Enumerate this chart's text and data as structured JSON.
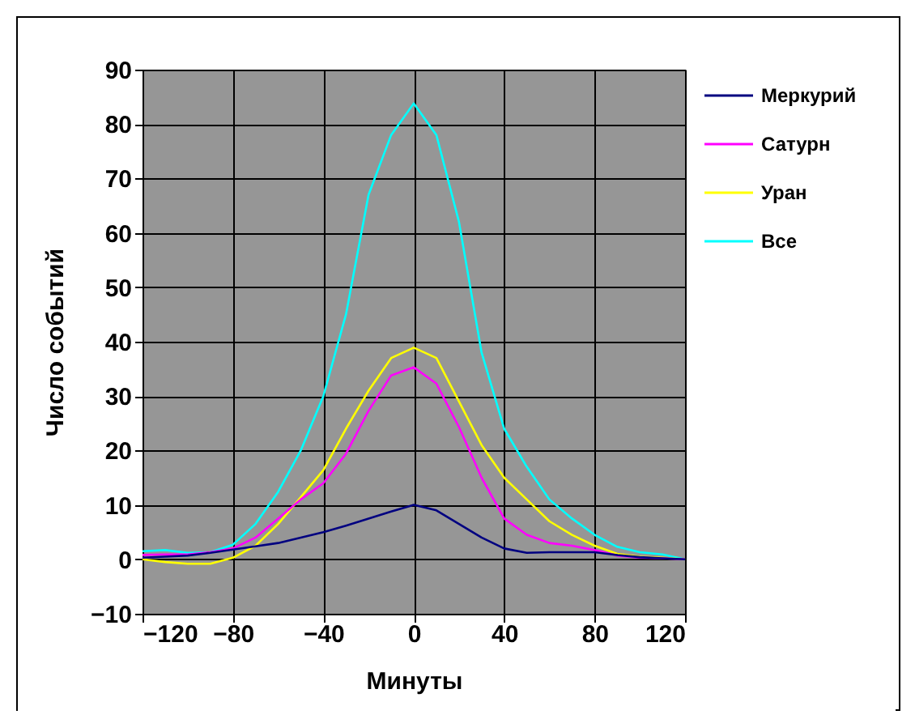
{
  "chart_data": {
    "type": "line",
    "xlabel": "Минуты",
    "ylabel": "Число событий",
    "x": [
      -120,
      -110,
      -100,
      -90,
      -80,
      -70,
      -60,
      -50,
      -40,
      -30,
      -20,
      -10,
      0,
      10,
      20,
      30,
      40,
      50,
      60,
      70,
      80,
      90,
      100,
      110,
      120
    ],
    "series": [
      {
        "name": "Меркурий",
        "color": "#000080",
        "values": [
          0.3,
          0.5,
          0.7,
          1.2,
          1.8,
          2.4,
          3,
          4,
          5,
          6.2,
          7.5,
          8.8,
          10,
          9,
          6.5,
          4,
          2,
          1.2,
          1.3,
          1.3,
          1.3,
          0.8,
          0.4,
          0.2,
          0
        ]
      },
      {
        "name": "Сатурн",
        "color": "#ff00ff",
        "values": [
          0.8,
          0.9,
          0.9,
          1.3,
          2,
          4,
          7.5,
          11,
          14,
          19.4,
          27.3,
          33.8,
          35.3,
          32.3,
          24.3,
          15,
          7.5,
          4.5,
          3,
          2.5,
          1.7,
          0.7,
          0.3,
          0.2,
          0
        ]
      },
      {
        "name": "Уран",
        "color": "#ffff00",
        "values": [
          0,
          -0.5,
          -0.8,
          -0.8,
          0.3,
          2.5,
          6.5,
          11.4,
          16.4,
          24,
          31,
          37,
          38.9,
          37,
          29,
          21,
          15,
          11,
          7,
          4.5,
          2.5,
          1,
          0.5,
          0.3,
          0
        ]
      },
      {
        "name": "Все",
        "color": "#00ffff",
        "values": [
          1.5,
          1.7,
          1.2,
          1.3,
          2.7,
          6.5,
          12.4,
          20,
          30,
          45,
          67,
          78,
          83.8,
          78,
          62,
          38,
          24,
          17,
          11,
          7.5,
          4.5,
          2.3,
          1.3,
          0.9,
          0
        ]
      }
    ],
    "xlim": [
      -120,
      120
    ],
    "xticks": [
      -120,
      -80,
      -40,
      0,
      40,
      80,
      120
    ],
    "ylim": [
      -10,
      90
    ],
    "yticks": [
      -10,
      0,
      10,
      20,
      30,
      40,
      50,
      60,
      70,
      80,
      90
    ],
    "grid": true,
    "legend": "right"
  }
}
